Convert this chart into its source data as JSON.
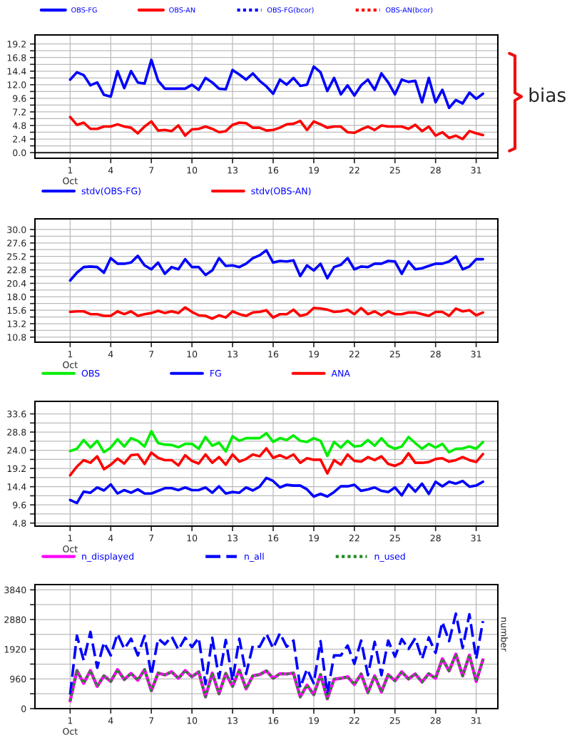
{
  "chart_data": [
    {
      "type": "line",
      "x": [
        1,
        1.5,
        2,
        2.5,
        3,
        3.5,
        4,
        4.5,
        5,
        5.5,
        6,
        6.5,
        7,
        7.5,
        8,
        8.5,
        9,
        9.5,
        10,
        10.5,
        11,
        11.5,
        12,
        12.5,
        13,
        13.5,
        14,
        14.5,
        15,
        15.5,
        16,
        16.5,
        17,
        17.5,
        18,
        18.5,
        19,
        19.5,
        20,
        20.5,
        21,
        21.5,
        22,
        22.5,
        23,
        23.5,
        24,
        24.5,
        25,
        25.5,
        26,
        26.5,
        27,
        27.5,
        28,
        28.5,
        29,
        29.5,
        30,
        30.5,
        31,
        31.5
      ],
      "xlim": [
        -1.6,
        32.6
      ],
      "xticks": [
        1,
        4,
        7,
        10,
        13,
        16,
        19,
        22,
        25,
        28,
        31
      ],
      "xlabel": "Oct",
      "ylim": [
        -1.0,
        20.8
      ],
      "yticks": [
        {
          "value": 0,
          "label": "0.0"
        },
        {
          "value": 1.2,
          "label": null
        },
        2.4,
        {
          "value": 3.6,
          "label": null
        },
        4.8,
        {
          "value": 6,
          "label": null
        },
        7.2,
        {
          "value": 8.4,
          "label": null
        },
        9.6,
        {
          "value": 10.8,
          "label": null
        },
        {
          "value": 12,
          "label": "12.0"
        },
        {
          "value": 13.2,
          "label": null
        },
        14.4,
        {
          "value": 15.6,
          "label": null
        },
        16.8,
        {
          "value": 18,
          "label": null
        },
        19.2
      ],
      "grid": true,
      "legend": "top",
      "line_style": "solid",
      "ref_lines": [
        {
          "axis": "y",
          "value": 0,
          "color": "#333333"
        }
      ],
      "annotations": [
        "bias"
      ],
      "series": [
        {
          "name": "OBS-FG",
          "color": "#0000ff",
          "values": [
            12.9,
            14.2,
            13.7,
            11.9,
            12.4,
            10.2,
            9.9,
            14.4,
            11.4,
            14.4,
            12.4,
            12.2,
            16.4,
            12.7,
            11.3,
            11.3,
            11.3,
            11.3,
            12.0,
            11.1,
            13.2,
            12.4,
            11.3,
            11.2,
            14.6,
            13.8,
            12.9,
            14.0,
            12.7,
            11.7,
            10.4,
            12.9,
            12.0,
            13.2,
            11.8,
            12.0,
            15.2,
            14.2,
            10.9,
            13.2,
            10.3,
            11.9,
            10.1,
            11.9,
            12.9,
            11.1,
            14.0,
            12.4,
            10.3,
            12.9,
            12.5,
            12.7,
            8.9,
            13.2,
            8.9,
            11.1,
            7.9,
            9.3,
            8.7,
            10.6,
            9.5,
            10.4
          ]
        },
        {
          "name": "OBS-AN",
          "color": "#ff0000",
          "values": [
            6.3,
            4.9,
            5.3,
            4.2,
            4.2,
            4.6,
            4.6,
            5.0,
            4.6,
            4.4,
            3.4,
            4.6,
            5.5,
            3.9,
            4.0,
            3.8,
            4.8,
            3.0,
            4.1,
            4.2,
            4.6,
            4.2,
            3.6,
            3.8,
            4.9,
            5.3,
            5.2,
            4.4,
            4.4,
            3.9,
            4.0,
            4.4,
            5.0,
            5.1,
            5.6,
            4.0,
            5.5,
            5.0,
            4.4,
            4.6,
            4.6,
            3.6,
            3.5,
            4.1,
            4.6,
            4.0,
            4.8,
            4.6,
            4.6,
            4.6,
            4.2,
            4.9,
            3.8,
            4.6,
            3.0,
            3.6,
            2.6,
            3.0,
            2.4,
            3.8,
            3.4,
            3.1
          ]
        },
        {
          "name": "OBS-FG(bcor)",
          "color": "#0000ff",
          "line_style": "dotted",
          "values": [
            null,
            null,
            null,
            null,
            null,
            null,
            null,
            null,
            null,
            null,
            null,
            null,
            null,
            null,
            null,
            null,
            null,
            null,
            null,
            null,
            null,
            null,
            null,
            null,
            null,
            null,
            null,
            null,
            null,
            null,
            null,
            null,
            null,
            null,
            null,
            null,
            null,
            null,
            null,
            null,
            null,
            null,
            null,
            null,
            null,
            null,
            null,
            null,
            null,
            null,
            null,
            null,
            null,
            null,
            null,
            null,
            null,
            null,
            null,
            null,
            null,
            null
          ]
        },
        {
          "name": "OBS-AN(bcor)",
          "color": "#ff0000",
          "line_style": "dotted",
          "values": [
            null,
            null,
            null,
            null,
            null,
            null,
            null,
            null,
            null,
            null,
            null,
            null,
            null,
            null,
            null,
            null,
            null,
            null,
            null,
            null,
            null,
            null,
            null,
            null,
            null,
            null,
            null,
            null,
            null,
            null,
            null,
            null,
            null,
            null,
            null,
            null,
            null,
            null,
            null,
            null,
            null,
            null,
            null,
            null,
            null,
            null,
            null,
            null,
            null,
            null,
            null,
            null,
            null,
            null,
            null,
            null,
            null,
            null,
            null,
            null,
            null,
            null
          ]
        }
      ]
    },
    {
      "type": "line",
      "x": [
        1,
        1.5,
        2,
        2.5,
        3,
        3.5,
        4,
        4.5,
        5,
        5.5,
        6,
        6.5,
        7,
        7.5,
        8,
        8.5,
        9,
        9.5,
        10,
        10.5,
        11,
        11.5,
        12,
        12.5,
        13,
        13.5,
        14,
        14.5,
        15,
        15.5,
        16,
        16.5,
        17,
        17.5,
        18,
        18.5,
        19,
        19.5,
        20,
        20.5,
        21,
        21.5,
        22,
        22.5,
        23,
        23.5,
        24,
        24.5,
        25,
        25.5,
        26,
        26.5,
        27,
        27.5,
        28,
        28.5,
        29,
        29.5,
        30,
        30.5,
        31,
        31.5
      ],
      "xlim": [
        -1.6,
        32.6
      ],
      "xticks": [
        1,
        4,
        7,
        10,
        13,
        16,
        19,
        22,
        25,
        28,
        31
      ],
      "xlabel": "Oct",
      "ylim": [
        9.9,
        31.9
      ],
      "yticks": [
        10.8,
        {
          "value": 12,
          "label": null
        },
        13.2,
        {
          "value": 14.4,
          "label": null
        },
        15.6,
        {
          "value": 16.8,
          "label": null
        },
        {
          "value": 18,
          "label": "18.0"
        },
        {
          "value": 19.2,
          "label": null
        },
        20.4,
        {
          "value": 21.6,
          "label": null
        },
        22.8,
        {
          "value": 24,
          "label": null
        },
        25.2,
        {
          "value": 26.4,
          "label": null
        },
        27.6,
        {
          "value": 28.8,
          "label": null
        },
        {
          "value": 30,
          "label": "30.0"
        }
      ],
      "grid": true,
      "legend": "top",
      "line_style": "solid",
      "series": [
        {
          "name": "stdv(OBS-FG)",
          "color": "#0000ff",
          "values": [
            20.9,
            22.3,
            23.3,
            23.4,
            23.3,
            22.3,
            24.9,
            23.9,
            23.9,
            24.1,
            25.3,
            23.6,
            22.9,
            24.1,
            22.1,
            23.3,
            22.9,
            24.7,
            23.3,
            23.3,
            21.9,
            22.7,
            24.9,
            23.5,
            23.6,
            23.3,
            23.9,
            24.9,
            25.4,
            26.3,
            24.1,
            24.4,
            24.3,
            24.5,
            21.7,
            23.6,
            22.7,
            23.9,
            21.3,
            23.3,
            23.7,
            24.9,
            22.9,
            23.4,
            23.3,
            23.9,
            23.9,
            24.4,
            24.3,
            22.1,
            24.3,
            22.9,
            23.1,
            23.5,
            23.9,
            23.9,
            24.3,
            25.2,
            22.9,
            23.4,
            24.7,
            24.7
          ]
        },
        {
          "name": "stdv(OBS-AN)",
          "color": "#ff0000",
          "values": [
            15.3,
            15.4,
            15.4,
            14.9,
            14.9,
            14.6,
            14.6,
            15.4,
            14.9,
            15.4,
            14.6,
            14.9,
            15.1,
            15.5,
            15.1,
            15.4,
            15.1,
            16.1,
            15.3,
            14.7,
            14.6,
            14.1,
            14.7,
            14.3,
            15.4,
            14.9,
            14.6,
            15.2,
            15.3,
            15.6,
            14.3,
            14.9,
            14.9,
            15.7,
            14.6,
            14.9,
            16.0,
            15.9,
            15.7,
            15.3,
            15.4,
            15.7,
            14.9,
            16.0,
            14.9,
            15.4,
            14.7,
            15.4,
            14.9,
            14.9,
            15.2,
            15.2,
            14.9,
            14.6,
            15.3,
            15.3,
            14.6,
            15.9,
            15.4,
            15.6,
            14.7,
            15.2
          ]
        }
      ]
    },
    {
      "type": "line",
      "x": [
        1,
        1.5,
        2,
        2.5,
        3,
        3.5,
        4,
        4.5,
        5,
        5.5,
        6,
        6.5,
        7,
        7.5,
        8,
        8.5,
        9,
        9.5,
        10,
        10.5,
        11,
        11.5,
        12,
        12.5,
        13,
        13.5,
        14,
        14.5,
        15,
        15.5,
        16,
        16.5,
        17,
        17.5,
        18,
        18.5,
        19,
        19.5,
        20,
        20.5,
        21,
        21.5,
        22,
        22.5,
        23,
        23.5,
        24,
        24.5,
        25,
        25.5,
        26,
        26.5,
        27,
        27.5,
        28,
        28.5,
        29,
        29.5,
        30,
        30.5,
        31,
        31.5
      ],
      "xlim": [
        -1.6,
        32.6
      ],
      "xticks": [
        1,
        4,
        7,
        10,
        13,
        16,
        19,
        22,
        25,
        28,
        31
      ],
      "xlabel": "Oct",
      "ylim": [
        4.0,
        36.9
      ],
      "yticks": [
        4.8,
        {
          "value": 7.2,
          "label": null
        },
        9.6,
        {
          "value": 12,
          "label": null
        },
        14.4,
        {
          "value": 16.8,
          "label": null
        },
        19.2,
        {
          "value": 21.6,
          "label": null
        },
        {
          "value": 24,
          "label": "24.0"
        },
        {
          "value": 26.4,
          "label": null
        },
        28.8,
        {
          "value": 31.2,
          "label": null
        },
        33.6
      ],
      "grid": true,
      "legend": "top",
      "line_style": "solid",
      "series": [
        {
          "name": "OBS",
          "color": "#00ee00",
          "values": [
            23.8,
            24.4,
            26.7,
            24.7,
            26.5,
            23.5,
            24.7,
            26.9,
            25.0,
            27.2,
            26.5,
            25.0,
            29.0,
            25.9,
            25.5,
            25.4,
            24.8,
            25.7,
            25.7,
            24.4,
            27.5,
            25.2,
            26.0,
            23.7,
            27.7,
            26.5,
            27.2,
            27.2,
            27.2,
            28.5,
            26.2,
            27.2,
            26.7,
            27.9,
            26.5,
            26.2,
            27.2,
            26.5,
            22.5,
            26.2,
            24.7,
            26.5,
            25.0,
            25.2,
            26.7,
            25.2,
            27.2,
            25.2,
            24.4,
            25.0,
            27.5,
            25.9,
            24.4,
            25.7,
            24.7,
            25.7,
            23.5,
            24.4,
            24.5,
            25.0,
            24.4,
            26.2
          ]
        },
        {
          "name": "FG",
          "color": "#0000ff",
          "values": [
            10.9,
            10.1,
            13.1,
            12.8,
            14.2,
            13.4,
            15.0,
            12.6,
            13.5,
            12.8,
            13.7,
            12.6,
            12.6,
            13.3,
            14.0,
            14.0,
            13.5,
            14.2,
            13.5,
            13.5,
            14.2,
            12.8,
            14.5,
            12.6,
            13.0,
            12.8,
            14.2,
            13.4,
            14.4,
            16.7,
            15.9,
            14.2,
            14.9,
            14.7,
            14.7,
            13.7,
            11.8,
            12.5,
            11.8,
            13.0,
            14.5,
            14.5,
            14.9,
            13.3,
            13.7,
            14.2,
            13.3,
            13.0,
            14.2,
            12.1,
            15.0,
            13.1,
            15.2,
            12.5,
            15.7,
            14.5,
            15.7,
            15.2,
            15.9,
            14.4,
            14.7,
            15.7
          ]
        },
        {
          "name": "ANA",
          "color": "#ff0000",
          "values": [
            17.4,
            19.7,
            21.4,
            20.7,
            22.4,
            19.0,
            20.2,
            21.8,
            20.5,
            22.7,
            22.9,
            20.4,
            23.4,
            22.0,
            21.4,
            21.4,
            20.0,
            22.7,
            21.2,
            20.5,
            22.9,
            20.7,
            22.2,
            20.2,
            22.9,
            21.0,
            21.7,
            22.9,
            22.4,
            24.5,
            22.0,
            22.7,
            21.9,
            22.9,
            20.7,
            21.9,
            21.5,
            21.5,
            17.9,
            21.4,
            20.2,
            22.9,
            21.2,
            21.0,
            22.2,
            21.4,
            22.4,
            20.4,
            19.9,
            20.7,
            23.2,
            20.7,
            20.7,
            20.9,
            21.7,
            21.9,
            21.0,
            21.4,
            22.2,
            21.4,
            20.9,
            23.0
          ]
        }
      ]
    },
    {
      "type": "line",
      "x": [
        1,
        1.5,
        2,
        2.5,
        3,
        3.5,
        4,
        4.5,
        5,
        5.5,
        6,
        6.5,
        7,
        7.5,
        8,
        8.5,
        9,
        9.5,
        10,
        10.5,
        11,
        11.5,
        12,
        12.5,
        13,
        13.5,
        14,
        14.5,
        15,
        15.5,
        16,
        16.5,
        17,
        17.5,
        18,
        18.5,
        19,
        19.5,
        20,
        20.5,
        21,
        21.5,
        22,
        22.5,
        23,
        23.5,
        24,
        24.5,
        25,
        25.5,
        26,
        26.5,
        27,
        27.5,
        28,
        28.5,
        29,
        29.5,
        30,
        30.5,
        31,
        31.5
      ],
      "xlim": [
        -1.6,
        32.6
      ],
      "xticks": [
        1,
        4,
        7,
        10,
        13,
        16,
        19,
        22,
        25,
        28,
        31
      ],
      "xlabel": "Oct",
      "ylim": [
        0,
        4010
      ],
      "yticks": [
        0,
        {
          "value": 480,
          "label": null
        },
        960,
        {
          "value": 1440,
          "label": null
        },
        1920,
        {
          "value": 2400,
          "label": null
        },
        2880,
        {
          "value": 3360,
          "label": null
        },
        3840
      ],
      "grid": true,
      "legend": "top",
      "y2label": "number",
      "series": [
        {
          "name": "n_displayed",
          "color": "#ff00ff",
          "line_style": "solid",
          "values": [
            250,
            1230,
            820,
            1230,
            720,
            1060,
            880,
            1260,
            940,
            1140,
            920,
            1260,
            580,
            1150,
            1090,
            1190,
            980,
            1230,
            1030,
            1190,
            380,
            1150,
            480,
            1140,
            720,
            1250,
            640,
            1060,
            1100,
            1220,
            980,
            1130,
            1120,
            1150,
            380,
            760,
            450,
            1100,
            320,
            950,
            980,
            1030,
            780,
            1120,
            520,
            1060,
            540,
            1100,
            900,
            1190,
            960,
            1120,
            860,
            1130,
            980,
            1610,
            1220,
            1760,
            1060,
            1730,
            880,
            1580
          ]
        },
        {
          "name": "n_all",
          "color": "#0000ff",
          "line_style": "dashed",
          "values": [
            450,
            2360,
            1560,
            2480,
            1320,
            2140,
            1720,
            2420,
            1930,
            2260,
            1720,
            2350,
            1080,
            2260,
            2080,
            2330,
            1900,
            2290,
            1990,
            2290,
            790,
            2290,
            990,
            2220,
            900,
            2260,
            1120,
            2040,
            2000,
            2420,
            1950,
            2440,
            2000,
            2200,
            680,
            1280,
            820,
            2180,
            480,
            1720,
            1720,
            2040,
            1450,
            2200,
            1080,
            2160,
            1080,
            2200,
            1680,
            2250,
            1930,
            2280,
            1600,
            2300,
            1800,
            2800,
            2180,
            3070,
            1960,
            3050,
            1600,
            2830
          ]
        },
        {
          "name": "n_used",
          "color": "#228b22",
          "line_style": "dotted",
          "values": [
            250,
            1230,
            820,
            1230,
            720,
            1060,
            880,
            1260,
            940,
            1140,
            920,
            1260,
            580,
            1150,
            1090,
            1190,
            980,
            1230,
            1030,
            1190,
            380,
            1150,
            480,
            1140,
            720,
            1250,
            640,
            1060,
            1100,
            1220,
            980,
            1130,
            1120,
            1150,
            380,
            760,
            450,
            1100,
            320,
            950,
            980,
            1030,
            780,
            1120,
            520,
            1060,
            540,
            1100,
            900,
            1190,
            960,
            1120,
            860,
            1130,
            980,
            1610,
            1220,
            1760,
            1060,
            1730,
            880,
            1580
          ]
        }
      ]
    }
  ]
}
